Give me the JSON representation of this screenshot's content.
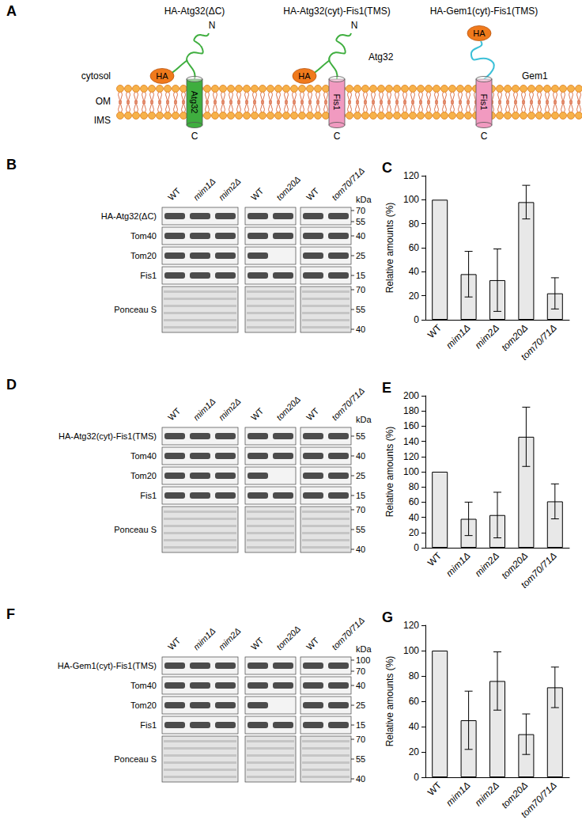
{
  "diagram": {
    "label": "A",
    "compartments": [
      "cytosol",
      "OM",
      "IMS"
    ],
    "constructs": [
      {
        "title": "HA-Atg32(ΔC)",
        "tag": "HA",
        "tms": "Atg32",
        "tms_color": "#3fae3f",
        "cyt": null,
        "cyt_color": "#3fae3f",
        "n": "N",
        "c": "C"
      },
      {
        "title": "HA-Atg32(cyt)-Fis1(TMS)",
        "tag": "HA",
        "tms": "Fis1",
        "tms_color": "#f19ac0",
        "cyt": "Atg32",
        "cyt_color": "#3fae3f",
        "n": "N",
        "c": "C"
      },
      {
        "title": "HA-Gem1(cyt)-Fis1(TMS)",
        "tag": "HA",
        "tms": "Fis1",
        "tms_color": "#f19ac0",
        "cyt": "Gem1",
        "cyt_color": "#3cc0d8",
        "n": null,
        "c": "C"
      }
    ]
  },
  "blots": [
    {
      "label": "B",
      "unit": "kDa",
      "lane_groups": [
        [
          "WT",
          "mim1Δ",
          "mim2Δ"
        ],
        [
          "WT",
          "tom20Δ"
        ],
        [
          "WT",
          "tom70/71Δ"
        ]
      ],
      "rows": [
        {
          "name": "HA-Atg32(ΔC)",
          "markers": [
            70,
            55
          ],
          "absent": [],
          "stain": false
        },
        {
          "name": "Tom40",
          "markers": [
            40
          ],
          "absent": [],
          "stain": false
        },
        {
          "name": "Tom20",
          "markers": [
            25
          ],
          "absent": [
            "tom20Δ"
          ],
          "stain": false
        },
        {
          "name": "Fis1",
          "markers": [
            15
          ],
          "absent": [],
          "stain": false
        },
        {
          "name": "Ponceau S",
          "markers": [
            70,
            55,
            40
          ],
          "absent": [],
          "stain": true
        }
      ]
    },
    {
      "label": "D",
      "unit": "kDa",
      "lane_groups": [
        [
          "WT",
          "mim1Δ",
          "mim2Δ"
        ],
        [
          "WT",
          "tom20Δ"
        ],
        [
          "WT",
          "tom70/71Δ"
        ]
      ],
      "rows": [
        {
          "name": "HA-Atg32(cyt)-Fis1(TMS)",
          "markers": [
            55
          ],
          "absent": [],
          "stain": false
        },
        {
          "name": "Tom40",
          "markers": [
            40
          ],
          "absent": [],
          "stain": false
        },
        {
          "name": "Tom20",
          "markers": [
            25
          ],
          "absent": [
            "tom20Δ"
          ],
          "stain": false
        },
        {
          "name": "Fis1",
          "markers": [
            15
          ],
          "absent": [],
          "stain": false
        },
        {
          "name": "Ponceau S",
          "markers": [
            70,
            55,
            40
          ],
          "absent": [],
          "stain": true
        }
      ]
    },
    {
      "label": "F",
      "unit": "kDa",
      "lane_groups": [
        [
          "WT",
          "mim1Δ",
          "mim2Δ"
        ],
        [
          "WT",
          "tom20Δ"
        ],
        [
          "WT",
          "tom70/71Δ"
        ]
      ],
      "rows": [
        {
          "name": "HA-Gem1(cyt)-Fis1(TMS)",
          "markers": [
            100,
            70
          ],
          "absent": [],
          "stain": false
        },
        {
          "name": "Tom40",
          "markers": [
            40
          ],
          "absent": [],
          "stain": false
        },
        {
          "name": "Tom20",
          "markers": [
            25
          ],
          "absent": [
            "tom20Δ"
          ],
          "stain": false
        },
        {
          "name": "Fis1",
          "markers": [
            15
          ],
          "absent": [],
          "stain": false
        },
        {
          "name": "Ponceau S",
          "markers": [
            70,
            55,
            40
          ],
          "absent": [],
          "stain": true
        }
      ]
    }
  ],
  "chart_data": [
    {
      "title": "C",
      "type": "bar",
      "ylabel": "Relative amounts (%)",
      "categories": [
        "WT",
        "mim1Δ",
        "mim2Δ",
        "tom20Δ",
        "tom70/71Δ"
      ],
      "values": [
        100,
        38,
        33,
        98,
        22
      ],
      "errors": [
        null,
        19,
        26,
        14,
        13
      ],
      "color": "#e8e8e8",
      "ylim": [
        0,
        120
      ],
      "yticks": [
        0,
        20,
        40,
        60,
        80,
        100,
        120
      ],
      "grid": false
    },
    {
      "title": "E",
      "type": "bar",
      "ylabel": "Relative amounts (%)",
      "categories": [
        "WT",
        "mim1Δ",
        "mim2Δ",
        "tom20Δ",
        "tom70/71Δ"
      ],
      "values": [
        100,
        38,
        43,
        146,
        61
      ],
      "errors": [
        null,
        22,
        30,
        39,
        23
      ],
      "color": "#e8e8e8",
      "ylim": [
        0,
        200
      ],
      "yticks": [
        0,
        20,
        40,
        60,
        80,
        100,
        120,
        140,
        160,
        180,
        200
      ],
      "grid": false
    },
    {
      "title": "G",
      "type": "bar",
      "ylabel": "Relative amounts (%)",
      "categories": [
        "WT",
        "mim1Δ",
        "mim2Δ",
        "tom20Δ",
        "tom70/71Δ"
      ],
      "values": [
        100,
        45,
        76,
        34,
        71
      ],
      "errors": [
        null,
        23,
        23,
        16,
        16
      ],
      "color": "#e8e8e8",
      "ylim": [
        0,
        120
      ],
      "yticks": [
        0,
        20,
        40,
        60,
        80,
        100,
        120
      ],
      "grid": false
    }
  ]
}
